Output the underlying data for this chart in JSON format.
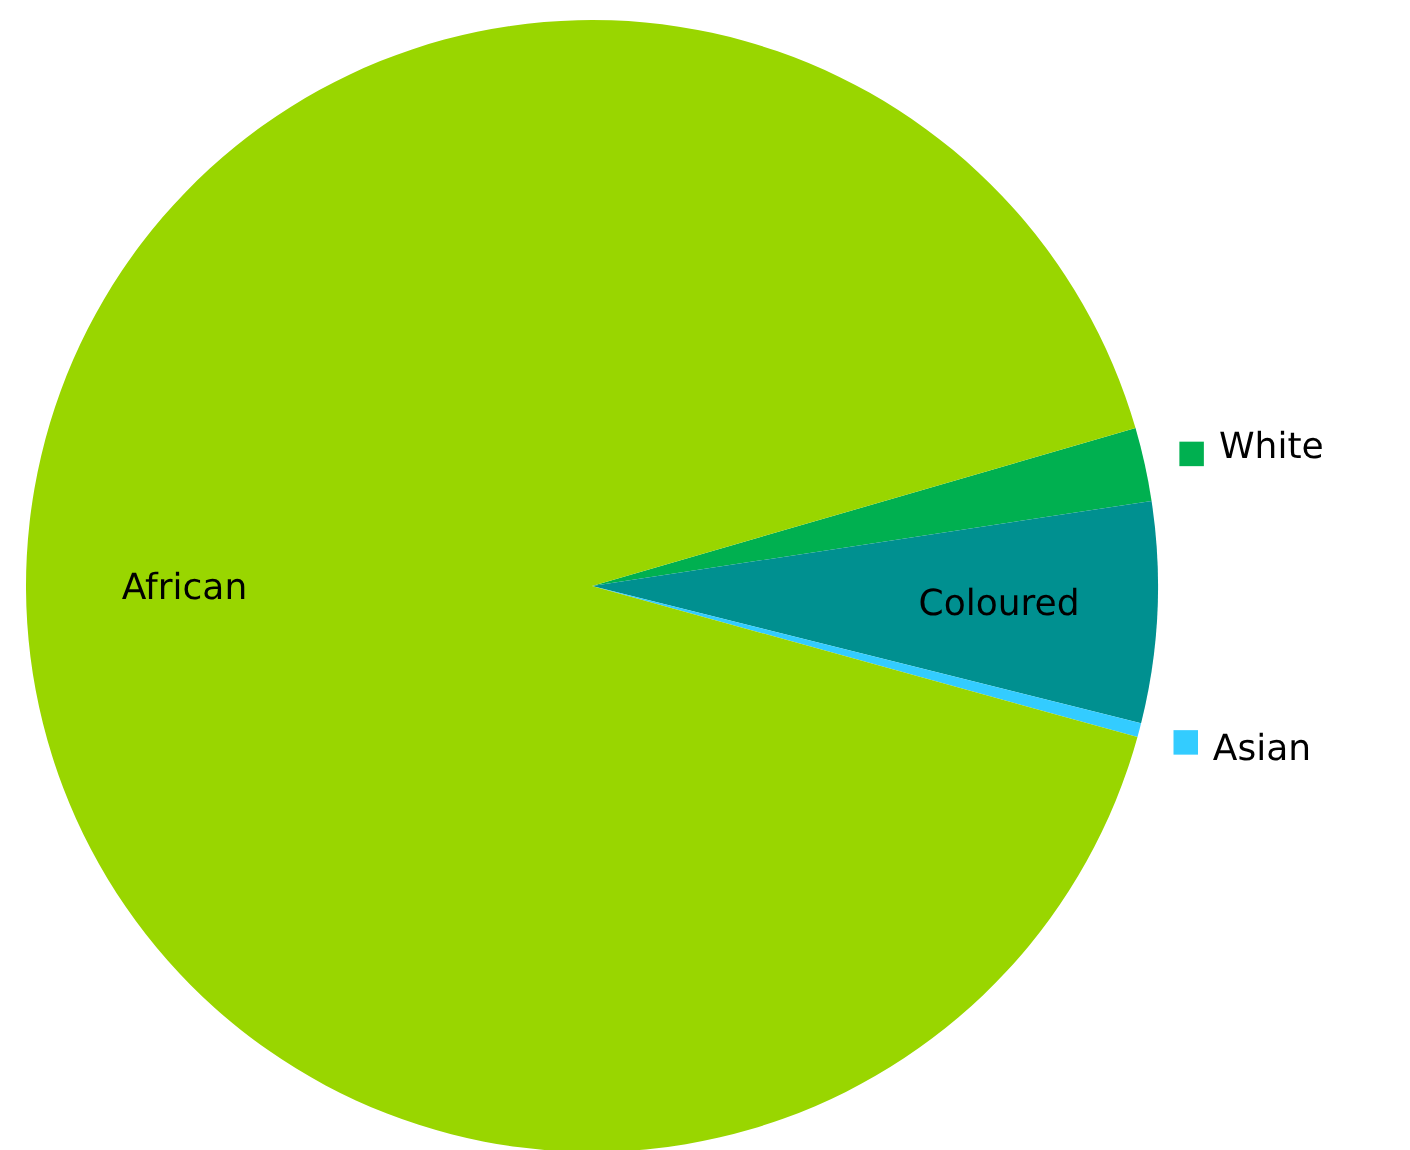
{
  "chart_data": {
    "type": "pie",
    "categories": [
      "White",
      "Coloured",
      "Asian",
      "African"
    ],
    "values": [
      2.1,
      6.3,
      0.4,
      91.2
    ],
    "colors": [
      "#00b050",
      "#009090",
      "#33ccff",
      "#99d600"
    ],
    "legend": "right"
  }
}
